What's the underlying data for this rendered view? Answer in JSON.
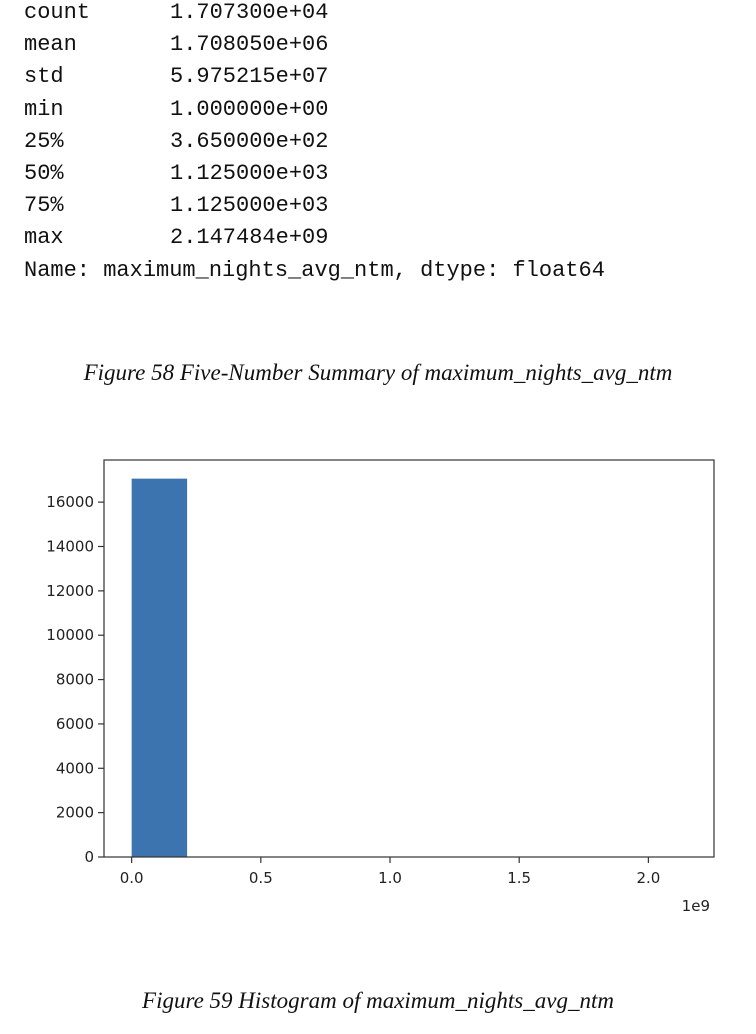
{
  "summary": {
    "rows": [
      {
        "label": "count",
        "value": "1.707300e+04"
      },
      {
        "label": "mean",
        "value": "1.708050e+06"
      },
      {
        "label": "std",
        "value": "5.975215e+07"
      },
      {
        "label": "min",
        "value": "1.000000e+00"
      },
      {
        "label": "25%",
        "value": "3.650000e+02"
      },
      {
        "label": "50%",
        "value": "1.125000e+03"
      },
      {
        "label": "75%",
        "value": "1.125000e+03"
      },
      {
        "label": "max",
        "value": "2.147484e+09"
      }
    ],
    "footer": "Name: maximum_nights_avg_ntm, dtype: float64"
  },
  "captions": {
    "figure58": "Figure 58 Five-Number Summary of maximum_nights_avg_ntm",
    "figure59": "Figure 59 Histogram of maximum_nights_avg_ntm"
  },
  "chart_data": {
    "type": "bar",
    "title": "",
    "xlabel": "",
    "ylabel": "",
    "x_offset_label": "1e9",
    "bars": [
      {
        "x_start": 0.0,
        "x_end": 0.2147,
        "count": 17060
      }
    ],
    "xlim": [
      -0.107,
      2.254
    ],
    "ylim": [
      0,
      17900
    ],
    "x_ticks": [
      0.0,
      0.5,
      1.0,
      1.5,
      2.0
    ],
    "x_tick_labels": [
      "0.0",
      "0.5",
      "1.0",
      "1.5",
      "2.0"
    ],
    "y_ticks": [
      0,
      2000,
      4000,
      6000,
      8000,
      10000,
      12000,
      14000,
      16000
    ],
    "y_tick_labels": [
      "0",
      "2000",
      "4000",
      "6000",
      "8000",
      "10000",
      "12000",
      "14000",
      "16000"
    ],
    "bar_color": "#3c74b0",
    "grid": false,
    "legend": "none"
  }
}
